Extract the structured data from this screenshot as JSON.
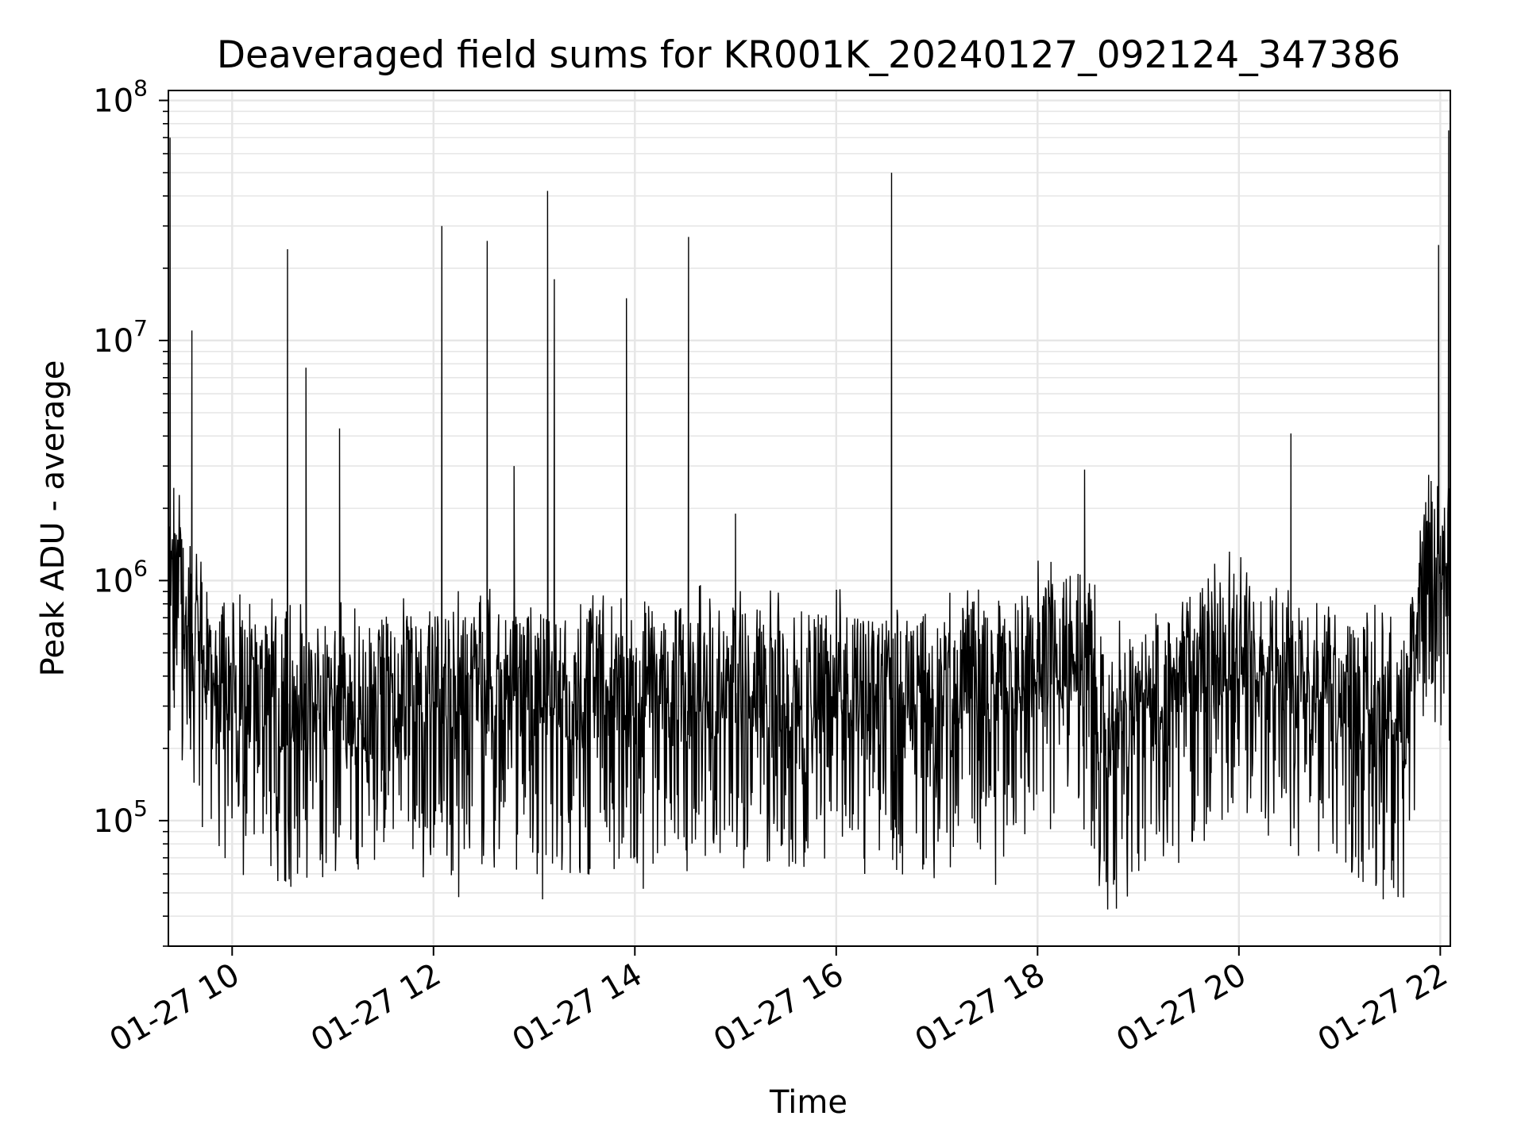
{
  "chart_data": {
    "type": "line",
    "title": "Deaveraged field sums for KR001K_20240127_092124_347386",
    "xlabel": "Time",
    "ylabel": "Peak ADU - average",
    "x_axis": {
      "kind": "datetime",
      "range": [
        "2024-01-27T09:22",
        "2024-01-27T22:06"
      ],
      "ticks": [
        "01-27 10",
        "01-27 12",
        "01-27 14",
        "01-27 16",
        "01-27 18",
        "01-27 20",
        "01-27 22"
      ],
      "tick_rotation_deg": 30
    },
    "y_axis": {
      "scale": "log",
      "range": [
        30000,
        110000000
      ],
      "ticks": [
        {
          "base": "10",
          "exp": "5"
        },
        {
          "base": "10",
          "exp": "6"
        },
        {
          "base": "10",
          "exp": "7"
        },
        {
          "base": "10",
          "exp": "8"
        }
      ]
    },
    "grid": true,
    "line_color": "#000000",
    "grid_color": "#e6e6e6",
    "baseline": {
      "note_source": "approximate envelope of dense noisy series (values in ADU)",
      "points": [
        {
          "x": "2024-01-27T09:23",
          "y": 1200000
        },
        {
          "x": "2024-01-27T09:28",
          "y": 1050000
        },
        {
          "x": "2024-01-27T09:33",
          "y": 650000
        },
        {
          "x": "2024-01-27T10:00",
          "y": 330000
        },
        {
          "x": "2024-01-27T11:00",
          "y": 290000
        },
        {
          "x": "2024-01-27T12:00",
          "y": 330000
        },
        {
          "x": "2024-01-27T13:00",
          "y": 330000
        },
        {
          "x": "2024-01-27T14:00",
          "y": 340000
        },
        {
          "x": "2024-01-27T15:00",
          "y": 340000
        },
        {
          "x": "2024-01-27T16:00",
          "y": 330000
        },
        {
          "x": "2024-01-27T17:00",
          "y": 320000
        },
        {
          "x": "2024-01-27T17:50",
          "y": 420000
        },
        {
          "x": "2024-01-27T18:30",
          "y": 480000
        },
        {
          "x": "2024-01-27T18:40",
          "y": 220000
        },
        {
          "x": "2024-01-27T19:30",
          "y": 400000
        },
        {
          "x": "2024-01-27T20:00",
          "y": 500000
        },
        {
          "x": "2024-01-27T21:00",
          "y": 320000
        },
        {
          "x": "2024-01-27T21:40",
          "y": 260000
        },
        {
          "x": "2024-01-27T21:52",
          "y": 1250000
        },
        {
          "x": "2024-01-27T22:02",
          "y": 1100000
        }
      ]
    },
    "spikes": [
      {
        "x": "2024-01-27T09:23",
        "y": 70000000
      },
      {
        "x": "2024-01-27T09:36",
        "y": 11000000
      },
      {
        "x": "2024-01-27T10:33",
        "y": 24000000
      },
      {
        "x": "2024-01-27T10:44",
        "y": 7700000
      },
      {
        "x": "2024-01-27T11:04",
        "y": 4300000
      },
      {
        "x": "2024-01-27T12:05",
        "y": 30000000
      },
      {
        "x": "2024-01-27T12:32",
        "y": 26000000
      },
      {
        "x": "2024-01-27T12:48",
        "y": 3000000
      },
      {
        "x": "2024-01-27T13:08",
        "y": 42000000
      },
      {
        "x": "2024-01-27T13:12",
        "y": 18000000
      },
      {
        "x": "2024-01-27T13:55",
        "y": 15000000
      },
      {
        "x": "2024-01-27T14:32",
        "y": 27000000
      },
      {
        "x": "2024-01-27T15:00",
        "y": 1900000
      },
      {
        "x": "2024-01-27T16:33",
        "y": 50000000
      },
      {
        "x": "2024-01-27T18:28",
        "y": 2900000
      },
      {
        "x": "2024-01-27T20:31",
        "y": 4100000
      },
      {
        "x": "2024-01-27T21:59",
        "y": 25000000
      },
      {
        "x": "2024-01-27T22:05",
        "y": 75000000
      }
    ],
    "dips": [
      {
        "x": "2024-01-27T10:35",
        "y": 53000
      },
      {
        "x": "2024-01-27T12:15",
        "y": 48000
      },
      {
        "x": "2024-01-27T13:05",
        "y": 47000
      },
      {
        "x": "2024-01-27T14:05",
        "y": 52000
      },
      {
        "x": "2024-01-27T16:17",
        "y": 60000
      },
      {
        "x": "2024-01-27T17:35",
        "y": 54000
      },
      {
        "x": "2024-01-27T18:47",
        "y": 43000
      },
      {
        "x": "2024-01-27T21:26",
        "y": 47000
      }
    ]
  }
}
